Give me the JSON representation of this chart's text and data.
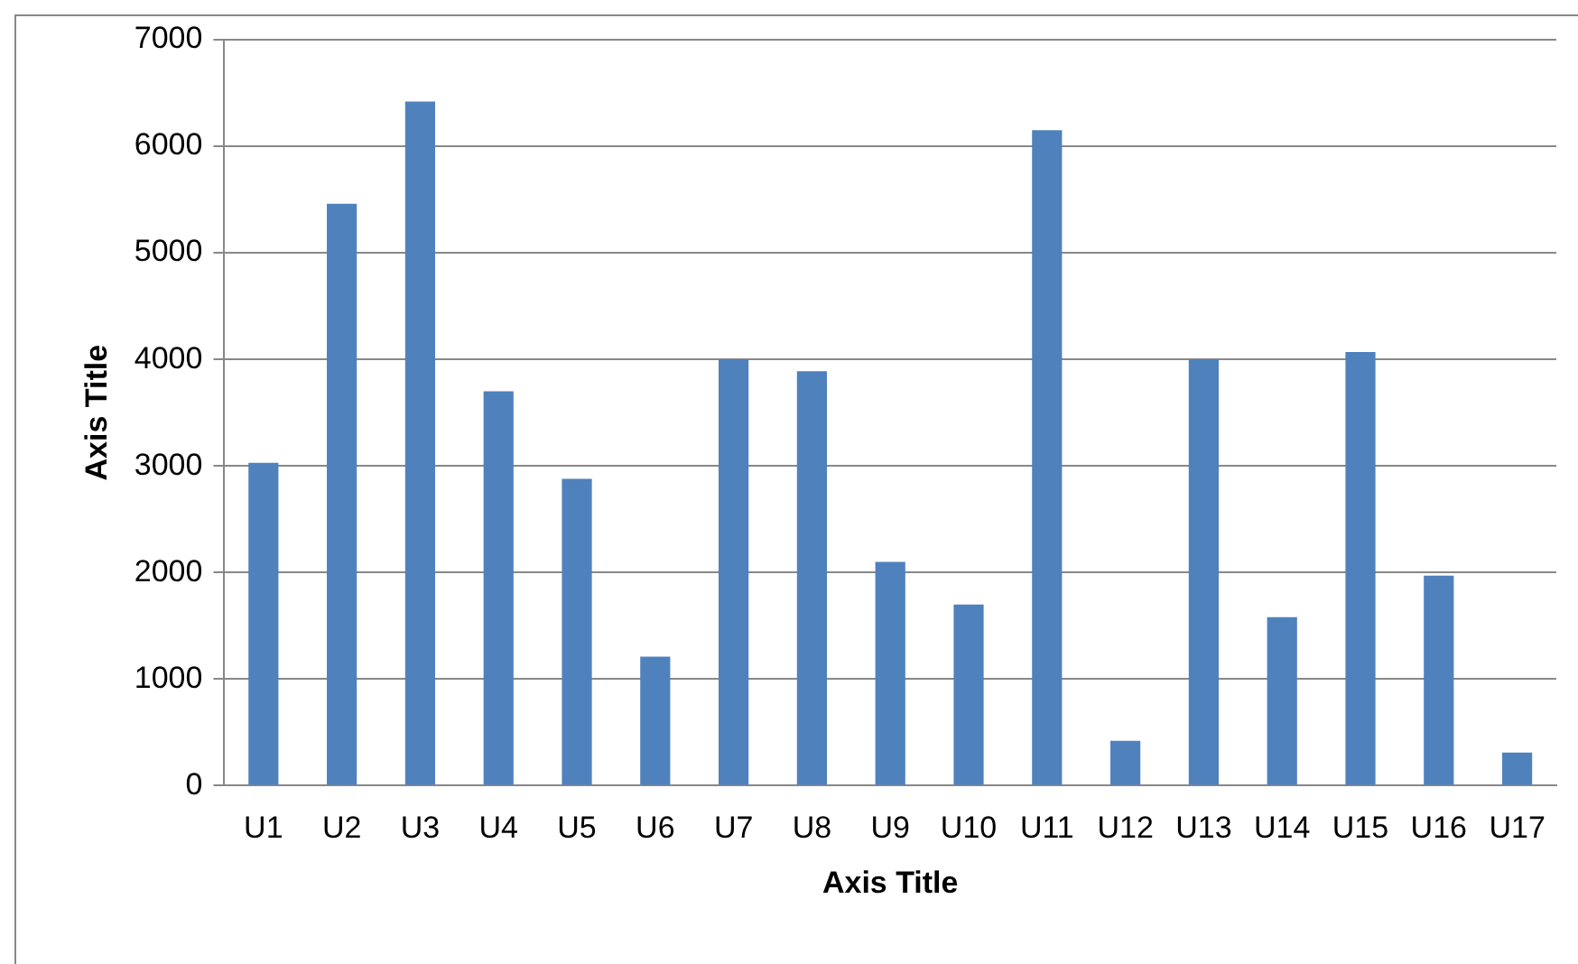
{
  "chart_data": {
    "type": "bar",
    "xlabel": "Axis Title",
    "ylabel": "Axis Title",
    "categories": [
      "U1",
      "U2",
      "U3",
      "U4",
      "U5",
      "U6",
      "U7",
      "U8",
      "U9",
      "U10",
      "U11",
      "U12",
      "U13",
      "U14",
      "U15",
      "U16",
      "U17"
    ],
    "values": [
      3030,
      5460,
      6420,
      3700,
      2880,
      1210,
      4000,
      3890,
      2100,
      1700,
      6150,
      420,
      4000,
      1580,
      4070,
      1970,
      310
    ],
    "color": "#4f81bd",
    "ylim": [
      0,
      7000
    ],
    "yticks": [
      0,
      1000,
      2000,
      3000,
      4000,
      5000,
      6000,
      7000
    ],
    "grid": "y"
  }
}
